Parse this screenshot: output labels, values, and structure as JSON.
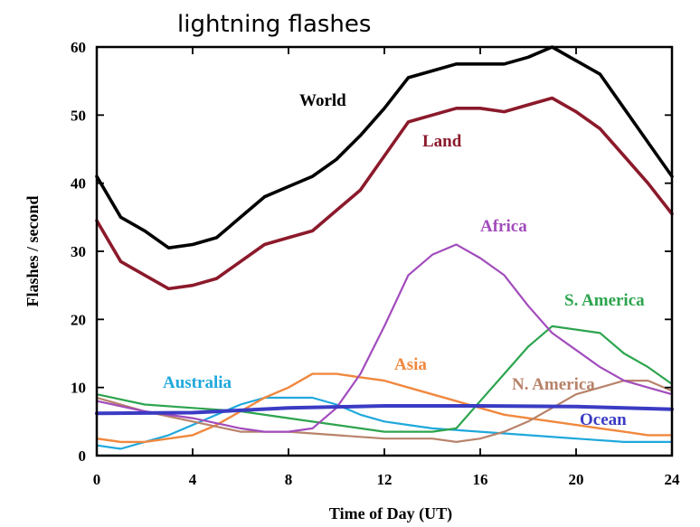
{
  "chart_data": {
    "type": "line",
    "title": "lightning flashes",
    "xlabel": "Time of Day (UT)",
    "ylabel": "Flashes / second",
    "xlim": [
      0,
      24
    ],
    "ylim": [
      0,
      60
    ],
    "xticks": [
      0,
      4,
      8,
      12,
      16,
      20,
      24
    ],
    "yticks": [
      0,
      10,
      20,
      30,
      40,
      50,
      60
    ],
    "grid": false,
    "legend": "none (series labeled inline)",
    "series": [
      {
        "name": "World",
        "color": "#000000",
        "x": [
          0,
          1,
          2,
          3,
          4,
          5,
          6,
          7,
          8,
          9,
          10,
          11,
          12,
          13,
          14,
          15,
          16,
          17,
          18,
          19,
          20,
          21,
          22,
          23,
          24
        ],
        "y": [
          41,
          35,
          33,
          30.5,
          31,
          32,
          35,
          38,
          39.5,
          41,
          43.5,
          47,
          51,
          55.5,
          56.5,
          57.5,
          57.5,
          57.5,
          58.5,
          60,
          58,
          56,
          51,
          46,
          41
        ]
      },
      {
        "name": "Land",
        "color": "#8b1a2b",
        "x": [
          0,
          1,
          2,
          3,
          4,
          5,
          6,
          7,
          8,
          9,
          10,
          11,
          12,
          13,
          14,
          15,
          16,
          17,
          18,
          19,
          20,
          21,
          22,
          23,
          24
        ],
        "y": [
          34.5,
          28.5,
          26.5,
          24.5,
          25,
          26,
          28.5,
          31,
          32,
          33,
          36,
          39,
          44,
          49,
          50,
          51,
          51,
          50.5,
          51.5,
          52.5,
          50.5,
          48,
          44,
          40,
          35.5
        ]
      },
      {
        "name": "Africa",
        "color": "#a24cbc",
        "x": [
          0,
          2,
          4,
          6,
          7,
          8,
          9,
          10,
          11,
          12,
          13,
          14,
          15,
          16,
          17,
          18,
          19,
          20,
          21,
          22,
          23,
          24
        ],
        "y": [
          8,
          6.5,
          5.5,
          4,
          3.5,
          3.5,
          4,
          7,
          12,
          19,
          26.5,
          29.5,
          31,
          29,
          26.5,
          22,
          18,
          15.5,
          13,
          11,
          10,
          9
        ]
      },
      {
        "name": "S. America",
        "color": "#2da44e",
        "x": [
          0,
          2,
          4,
          6,
          8,
          10,
          12,
          14,
          15,
          16,
          17,
          18,
          19,
          20,
          21,
          22,
          23,
          24
        ],
        "y": [
          9,
          7.5,
          7,
          6.5,
          5.5,
          4.5,
          3.5,
          3.5,
          4,
          8,
          12,
          16,
          19,
          18.5,
          18,
          15,
          13,
          10.5
        ]
      },
      {
        "name": "Asia",
        "color": "#f0883e",
        "x": [
          0,
          1,
          2,
          3,
          4,
          5,
          6,
          7,
          8,
          9,
          10,
          11,
          12,
          13,
          14,
          15,
          16,
          17,
          18,
          19,
          20,
          21,
          22,
          23,
          24
        ],
        "y": [
          2.5,
          2,
          2,
          2.5,
          3,
          4.5,
          6.5,
          8.5,
          10,
          12,
          12,
          11.5,
          11,
          10,
          9,
          8,
          7,
          6,
          5.5,
          5,
          4.5,
          4,
          3.5,
          3,
          3
        ]
      },
      {
        "name": "N. America",
        "color": "#b8826a",
        "x": [
          0,
          2,
          4,
          6,
          8,
          10,
          12,
          14,
          15,
          16,
          17,
          18,
          19,
          20,
          21,
          22,
          23,
          24
        ],
        "y": [
          8.5,
          6.5,
          5,
          3.5,
          3.5,
          3,
          2.5,
          2.5,
          2,
          2.5,
          3.5,
          5,
          7,
          9,
          10,
          11,
          11,
          9.5
        ]
      },
      {
        "name": "Australia",
        "color": "#1fa8dc",
        "x": [
          0,
          1,
          2,
          3,
          4,
          5,
          6,
          7,
          8,
          9,
          10,
          11,
          12,
          13,
          14,
          16,
          18,
          20,
          22,
          24
        ],
        "y": [
          1.5,
          1,
          2,
          3,
          4.5,
          6,
          7.5,
          8.5,
          8.5,
          8.5,
          7.5,
          6,
          5,
          4.5,
          4,
          3.5,
          3,
          2.5,
          2,
          2
        ]
      },
      {
        "name": "Ocean",
        "color": "#3b3bc4",
        "x": [
          0,
          4,
          8,
          12,
          16,
          20,
          24
        ],
        "y": [
          6.2,
          6.3,
          7.0,
          7.3,
          7.3,
          7.2,
          6.8
        ]
      }
    ]
  }
}
